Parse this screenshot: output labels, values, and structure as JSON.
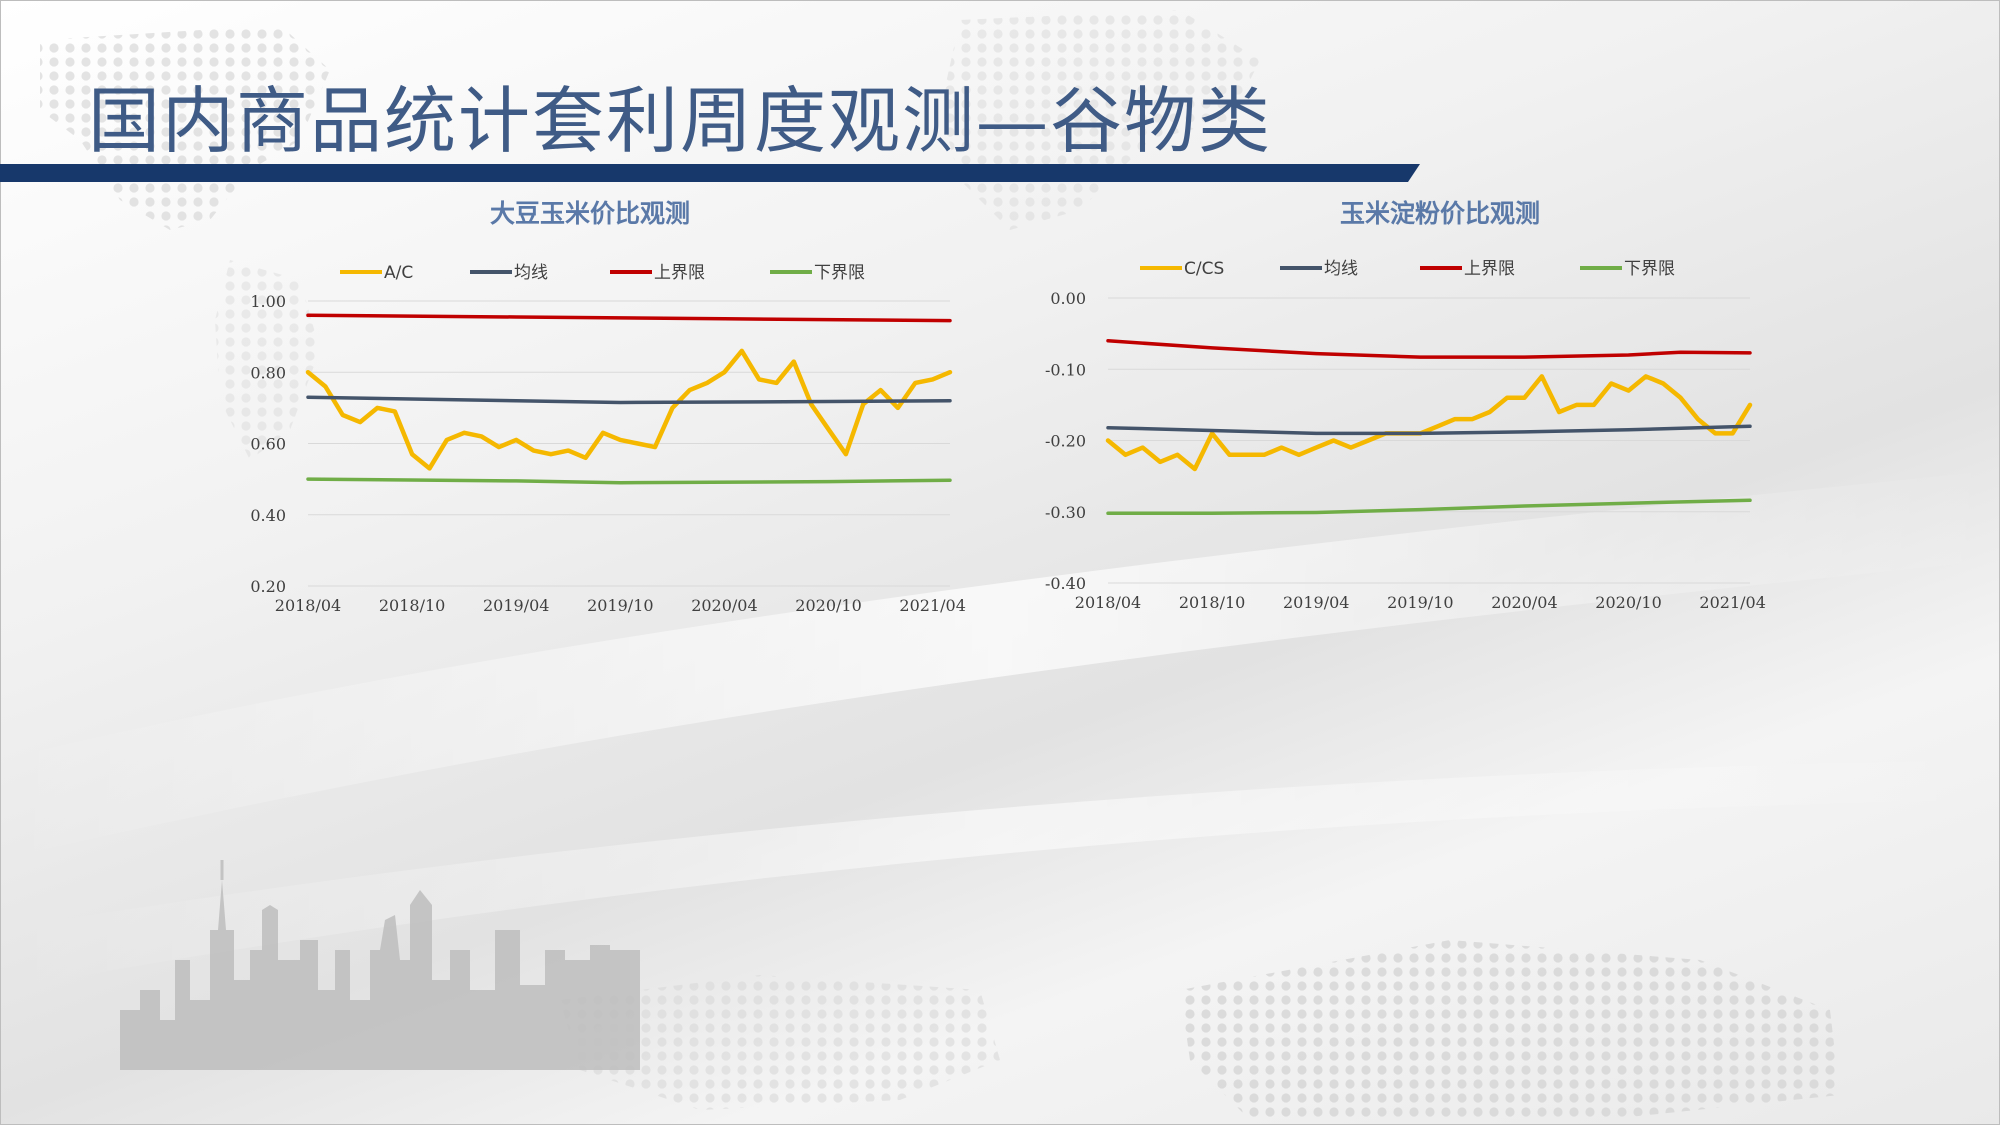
{
  "slide": {
    "title": "国内商品统计套利周度观测—谷物类"
  },
  "colors": {
    "title": "#3f5b86",
    "bar": "#17386b",
    "ratio": "#f5b800",
    "mean": "#44546a",
    "upper": "#c00000",
    "lower": "#70ad47"
  },
  "chart_data": [
    {
      "type": "line",
      "title": "大豆玉米价比观测",
      "x_ticks": [
        "2018/04",
        "2018/10",
        "2019/04",
        "2019/10",
        "2020/04",
        "2020/10",
        "2021/04"
      ],
      "x_range": [
        "2018/04",
        "2021/05"
      ],
      "y_ticks": [
        "1.00",
        "0.80",
        "0.60",
        "0.40",
        "0.20"
      ],
      "ylim": [
        0.2,
        1.0
      ],
      "grid": true,
      "legend_position": "top",
      "series": [
        {
          "name": "A/C",
          "color": "#f5b800",
          "points": [
            [
              "2018/04",
              0.8
            ],
            [
              "2018/05",
              0.76
            ],
            [
              "2018/06",
              0.68
            ],
            [
              "2018/07",
              0.66
            ],
            [
              "2018/08",
              0.7
            ],
            [
              "2018/09",
              0.69
            ],
            [
              "2018/10",
              0.57
            ],
            [
              "2018/11",
              0.53
            ],
            [
              "2018/12",
              0.61
            ],
            [
              "2019/01",
              0.63
            ],
            [
              "2019/02",
              0.62
            ],
            [
              "2019/03",
              0.59
            ],
            [
              "2019/04",
              0.61
            ],
            [
              "2019/05",
              0.58
            ],
            [
              "2019/06",
              0.57
            ],
            [
              "2019/07",
              0.58
            ],
            [
              "2019/08",
              0.56
            ],
            [
              "2019/09",
              0.63
            ],
            [
              "2019/10",
              0.61
            ],
            [
              "2019/11",
              0.6
            ],
            [
              "2019/12",
              0.59
            ],
            [
              "2020/01",
              0.7
            ],
            [
              "2020/02",
              0.75
            ],
            [
              "2020/03",
              0.77
            ],
            [
              "2020/04",
              0.8
            ],
            [
              "2020/05",
              0.86
            ],
            [
              "2020/06",
              0.78
            ],
            [
              "2020/07",
              0.77
            ],
            [
              "2020/08",
              0.83
            ],
            [
              "2020/09",
              0.71
            ],
            [
              "2020/10",
              0.64
            ],
            [
              "2020/11",
              0.57
            ],
            [
              "2020/12",
              0.71
            ],
            [
              "2021/01",
              0.75
            ],
            [
              "2021/02",
              0.7
            ],
            [
              "2021/03",
              0.77
            ],
            [
              "2021/04",
              0.78
            ],
            [
              "2021/05",
              0.8
            ]
          ]
        },
        {
          "name": "均线",
          "color": "#44546a",
          "points": [
            [
              "2018/04",
              0.73
            ],
            [
              "2019/04",
              0.72
            ],
            [
              "2019/10",
              0.715
            ],
            [
              "2020/10",
              0.718
            ],
            [
              "2021/05",
              0.72
            ]
          ]
        },
        {
          "name": "上界限",
          "color": "#c00000",
          "points": [
            [
              "2018/04",
              0.96
            ],
            [
              "2019/04",
              0.955
            ],
            [
              "2020/04",
              0.95
            ],
            [
              "2021/05",
              0.945
            ]
          ]
        },
        {
          "name": "下界限",
          "color": "#70ad47",
          "points": [
            [
              "2018/04",
              0.5
            ],
            [
              "2019/04",
              0.495
            ],
            [
              "2019/10",
              0.49
            ],
            [
              "2020/10",
              0.493
            ],
            [
              "2021/05",
              0.497
            ]
          ]
        }
      ]
    },
    {
      "type": "line",
      "title": "玉米淀粉价比观测",
      "x_ticks": [
        "2018/04",
        "2018/10",
        "2019/04",
        "2019/10",
        "2020/04",
        "2020/10",
        "2021/04"
      ],
      "x_range": [
        "2018/04",
        "2021/05"
      ],
      "y_ticks": [
        "0.00",
        "-0.10",
        "-0.20",
        "-0.30",
        "-0.40"
      ],
      "ylim": [
        -0.4,
        0.0
      ],
      "grid": true,
      "legend_position": "top",
      "series": [
        {
          "name": "C/CS",
          "color": "#f5b800",
          "points": [
            [
              "2018/04",
              -0.2
            ],
            [
              "2018/05",
              -0.22
            ],
            [
              "2018/06",
              -0.21
            ],
            [
              "2018/07",
              -0.23
            ],
            [
              "2018/08",
              -0.22
            ],
            [
              "2018/09",
              -0.24
            ],
            [
              "2018/10",
              -0.19
            ],
            [
              "2018/11",
              -0.22
            ],
            [
              "2018/12",
              -0.22
            ],
            [
              "2019/01",
              -0.22
            ],
            [
              "2019/02",
              -0.21
            ],
            [
              "2019/03",
              -0.22
            ],
            [
              "2019/04",
              -0.21
            ],
            [
              "2019/05",
              -0.2
            ],
            [
              "2019/06",
              -0.21
            ],
            [
              "2019/07",
              -0.2
            ],
            [
              "2019/08",
              -0.19
            ],
            [
              "2019/09",
              -0.19
            ],
            [
              "2019/10",
              -0.19
            ],
            [
              "2019/11",
              -0.18
            ],
            [
              "2019/12",
              -0.17
            ],
            [
              "2020/01",
              -0.17
            ],
            [
              "2020/02",
              -0.16
            ],
            [
              "2020/03",
              -0.14
            ],
            [
              "2020/04",
              -0.14
            ],
            [
              "2020/05",
              -0.11
            ],
            [
              "2020/06",
              -0.16
            ],
            [
              "2020/07",
              -0.15
            ],
            [
              "2020/08",
              -0.15
            ],
            [
              "2020/09",
              -0.12
            ],
            [
              "2020/10",
              -0.13
            ],
            [
              "2020/11",
              -0.11
            ],
            [
              "2020/12",
              -0.12
            ],
            [
              "2021/01",
              -0.14
            ],
            [
              "2021/02",
              -0.17
            ],
            [
              "2021/03",
              -0.19
            ],
            [
              "2021/04",
              -0.19
            ],
            [
              "2021/05",
              -0.15
            ]
          ]
        },
        {
          "name": "均线",
          "color": "#44546a",
          "points": [
            [
              "2018/04",
              -0.182
            ],
            [
              "2019/04",
              -0.19
            ],
            [
              "2019/10",
              -0.19
            ],
            [
              "2020/04",
              -0.188
            ],
            [
              "2020/10",
              -0.185
            ],
            [
              "2021/05",
              -0.18
            ]
          ]
        },
        {
          "name": "上界限",
          "color": "#c00000",
          "points": [
            [
              "2018/04",
              -0.06
            ],
            [
              "2018/10",
              -0.07
            ],
            [
              "2019/04",
              -0.078
            ],
            [
              "2019/10",
              -0.083
            ],
            [
              "2020/04",
              -0.083
            ],
            [
              "2020/10",
              -0.08
            ],
            [
              "2021/01",
              -0.076
            ],
            [
              "2021/05",
              -0.077
            ]
          ]
        },
        {
          "name": "下界限",
          "color": "#70ad47",
          "points": [
            [
              "2018/04",
              -0.302
            ],
            [
              "2018/10",
              -0.302
            ],
            [
              "2019/04",
              -0.301
            ],
            [
              "2019/10",
              -0.297
            ],
            [
              "2020/04",
              -0.292
            ],
            [
              "2020/10",
              -0.288
            ],
            [
              "2021/05",
              -0.284
            ]
          ]
        }
      ]
    }
  ]
}
